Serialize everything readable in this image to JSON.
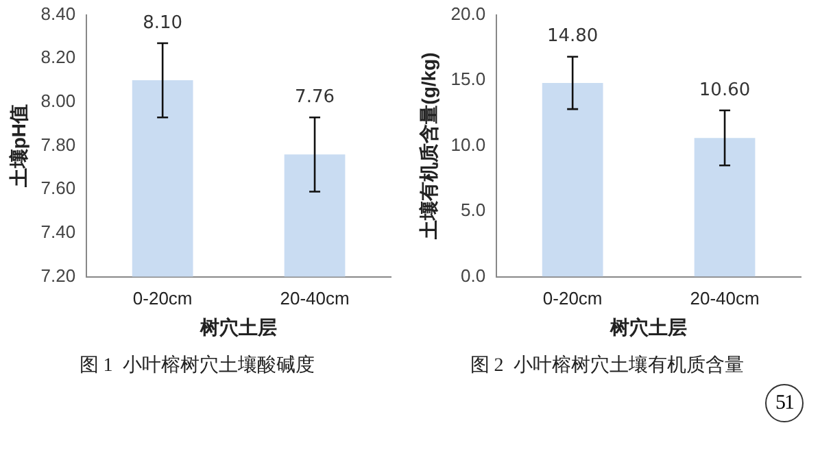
{
  "chart_data": [
    {
      "type": "bar",
      "title": "图 1  小叶榕树穴土壤酸碱度",
      "xlabel": "树穴土层",
      "ylabel": "土壤pH值",
      "categories": [
        "0-20cm",
        "20-40cm"
      ],
      "series": [
        {
          "color": "#c9dcf2",
          "values": [
            8.1,
            7.76
          ],
          "errors": [
            0.17,
            0.17
          ]
        }
      ],
      "ylim": [
        7.2,
        8.4
      ],
      "yticks": [
        {
          "value": 7.2,
          "label": "7.20"
        },
        {
          "value": 7.4,
          "label": "7.40"
        },
        {
          "value": 7.6,
          "label": "7.60"
        },
        {
          "value": 7.8,
          "label": "7.80"
        },
        {
          "value": 8.0,
          "label": "8.00"
        },
        {
          "value": 8.2,
          "label": "8.20"
        },
        {
          "value": 8.4,
          "label": "8.40"
        }
      ],
      "value_labels": [
        "8.10",
        "7.76"
      ],
      "grid": false,
      "legend": false
    },
    {
      "type": "bar",
      "title": "图 2  小叶榕树穴土壤有机质含量",
      "xlabel": "树穴土层",
      "ylabel": "土壤有机质含量(g/kg)",
      "categories": [
        "0-20cm",
        "20-40cm"
      ],
      "series": [
        {
          "color": "#c9dcf2",
          "values": [
            14.8,
            10.6
          ],
          "errors": [
            2.0,
            2.1
          ]
        }
      ],
      "ylim": [
        0,
        20
      ],
      "yticks": [
        {
          "value": 0,
          "label": "0.0"
        },
        {
          "value": 5,
          "label": "5.0"
        },
        {
          "value": 10,
          "label": "10.0"
        },
        {
          "value": 15,
          "label": "15.0"
        },
        {
          "value": 20,
          "label": "20.0"
        }
      ],
      "value_labels": [
        "14.80",
        "10.60"
      ],
      "grid": false,
      "legend": false,
      "annotations": [
        "51"
      ]
    }
  ]
}
